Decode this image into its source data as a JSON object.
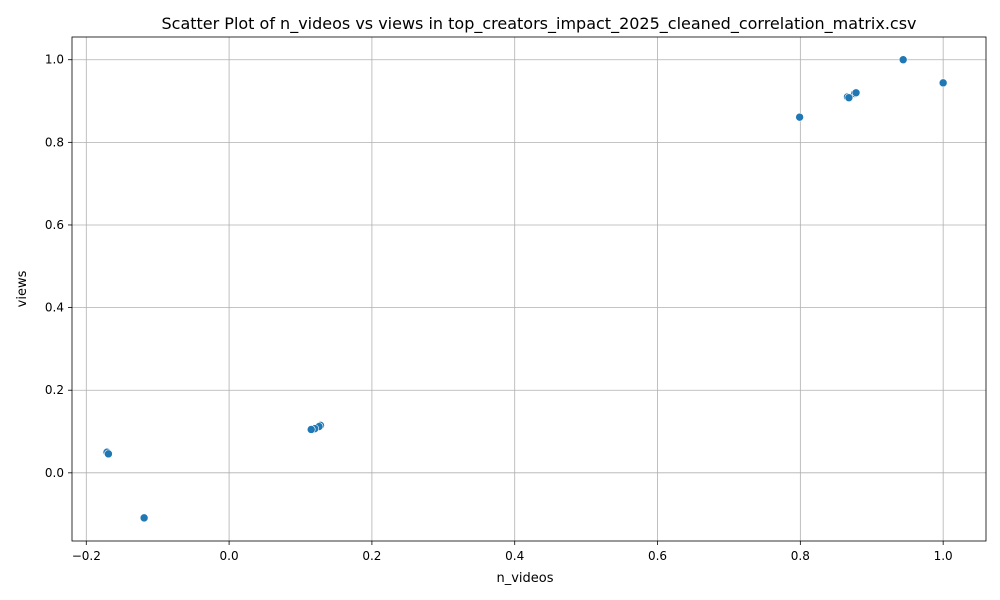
{
  "chart_data": {
    "type": "scatter",
    "title": "Scatter Plot of n_videos vs views in top_creators_impact_2025_cleaned_correlation_matrix.csv",
    "xlabel": "n_videos",
    "ylabel": "views",
    "xlim": [
      -0.22,
      1.06
    ],
    "ylim": [
      -0.165,
      1.055
    ],
    "xticks": [
      -0.2,
      0.0,
      0.2,
      0.4,
      0.6,
      0.8,
      1.0
    ],
    "xtick_labels": [
      "−0.2",
      "0.0",
      "0.2",
      "0.4",
      "0.6",
      "0.8",
      "1.0"
    ],
    "yticks": [
      0.0,
      0.2,
      0.4,
      0.6,
      0.8,
      1.0
    ],
    "ytick_labels": [
      "0.0",
      "0.2",
      "0.4",
      "0.6",
      "0.8",
      "1.0"
    ],
    "grid": true,
    "color": "#1f77b4",
    "points": [
      {
        "x": 0.944,
        "y": 1.0
      },
      {
        "x": 1.0,
        "y": 0.944
      },
      {
        "x": 0.876,
        "y": 0.918
      },
      {
        "x": 0.878,
        "y": 0.92
      },
      {
        "x": 0.866,
        "y": 0.91
      },
      {
        "x": 0.868,
        "y": 0.908
      },
      {
        "x": 0.799,
        "y": 0.861
      },
      {
        "x": 0.128,
        "y": 0.115
      },
      {
        "x": 0.126,
        "y": 0.112
      },
      {
        "x": 0.12,
        "y": 0.107
      },
      {
        "x": 0.115,
        "y": 0.105
      },
      {
        "x": -0.171,
        "y": 0.05
      },
      {
        "x": -0.169,
        "y": 0.046
      },
      {
        "x": -0.119,
        "y": -0.109
      }
    ]
  }
}
